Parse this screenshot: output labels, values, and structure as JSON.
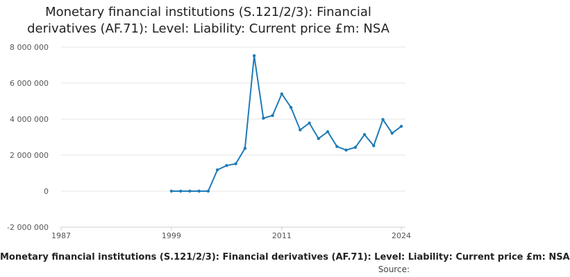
{
  "title_line1": "Monetary financial institutions (S.121/2/3): Financial",
  "title_line2": "derivatives (AF.71): Level: Liability: Current price £m: NSA",
  "legend_text": "Monetary financial institutions (S.121/2/3): Financial derivatives (AF.71): Level: Liability: Current price £m: NSA",
  "source_label": "Source:",
  "colors": {
    "series": "#1f7bb8",
    "grid": "#e6e6e6",
    "axis": "#cccccc"
  },
  "chart_data": {
    "type": "line",
    "title": "Monetary financial institutions (S.121/2/3): Financial derivatives (AF.71): Level: Liability: Current price £m: NSA",
    "xlabel": "",
    "ylabel": "",
    "xlim": [
      1987,
      2024
    ],
    "ylim": [
      -2000000,
      8000000
    ],
    "x_ticks": [
      1987,
      1999,
      2011,
      2024
    ],
    "x_tick_labels": [
      "1987",
      "1999",
      "2011",
      "2024"
    ],
    "y_ticks": [
      -2000000,
      0,
      2000000,
      4000000,
      6000000,
      8000000
    ],
    "y_tick_labels": [
      "-2 000 000",
      "0",
      "2 000 000",
      "4 000 000",
      "6 000 000",
      "8 000 000"
    ],
    "grid": true,
    "series": [
      {
        "name": "Monetary financial institutions (S.121/2/3): Financial derivatives (AF.71): Level: Liability: Current price £m: NSA",
        "x": [
          1999,
          2000,
          2001,
          2002,
          2003,
          2004,
          2005,
          2006,
          2007,
          2008,
          2009,
          2010,
          2011,
          2012,
          2013,
          2014,
          2015,
          2016,
          2017,
          2018,
          2019,
          2020,
          2021,
          2022,
          2023,
          2024
        ],
        "values": [
          0,
          0,
          0,
          0,
          0,
          1180000,
          1420000,
          1520000,
          2380000,
          7520000,
          4050000,
          4200000,
          5400000,
          4650000,
          3400000,
          3780000,
          2920000,
          3300000,
          2480000,
          2280000,
          2430000,
          3140000,
          2520000,
          3980000,
          3220000,
          3600000
        ]
      }
    ]
  }
}
